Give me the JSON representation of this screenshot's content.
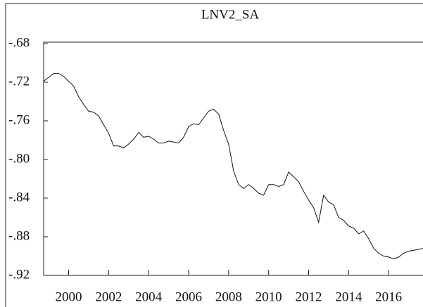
{
  "chart_data": {
    "type": "line",
    "title": "LNV2_SA",
    "x": [
      1998.75,
      1999,
      1999.25,
      1999.5,
      1999.75,
      2000,
      2000.25,
      2000.5,
      2000.75,
      2001,
      2001.25,
      2001.5,
      2001.75,
      2002,
      2002.25,
      2002.5,
      2002.75,
      2003,
      2003.25,
      2003.5,
      2003.75,
      2004,
      2004.25,
      2004.5,
      2004.75,
      2005,
      2005.25,
      2005.5,
      2005.75,
      2006,
      2006.25,
      2006.5,
      2006.75,
      2007,
      2007.25,
      2007.5,
      2007.75,
      2008,
      2008.25,
      2008.5,
      2008.75,
      2009,
      2009.25,
      2009.5,
      2009.75,
      2010,
      2010.25,
      2010.5,
      2010.75,
      2011,
      2011.25,
      2011.5,
      2011.75,
      2012,
      2012.25,
      2012.5,
      2012.75,
      2013,
      2013.25,
      2013.5,
      2013.75,
      2014,
      2014.25,
      2014.5,
      2014.75,
      2015,
      2015.25,
      2015.5,
      2015.75,
      2016,
      2016.25,
      2016.5,
      2016.75,
      2017,
      2017.25,
      2017.5,
      2017.75
    ],
    "series": [
      {
        "name": "LNV2_SA",
        "color": "#111111",
        "values": [
          -0.719,
          -0.715,
          -0.711,
          -0.711,
          -0.714,
          -0.719,
          -0.724,
          -0.735,
          -0.743,
          -0.75,
          -0.751,
          -0.755,
          -0.764,
          -0.773,
          -0.786,
          -0.786,
          -0.788,
          -0.784,
          -0.779,
          -0.772,
          -0.777,
          -0.776,
          -0.779,
          -0.783,
          -0.783,
          -0.781,
          -0.782,
          -0.783,
          -0.777,
          -0.766,
          -0.763,
          -0.764,
          -0.757,
          -0.75,
          -0.748,
          -0.753,
          -0.77,
          -0.784,
          -0.812,
          -0.826,
          -0.83,
          -0.826,
          -0.83,
          -0.835,
          -0.837,
          -0.826,
          -0.826,
          -0.828,
          -0.826,
          -0.813,
          -0.818,
          -0.823,
          -0.833,
          -0.842,
          -0.85,
          -0.865,
          -0.837,
          -0.844,
          -0.847,
          -0.86,
          -0.863,
          -0.869,
          -0.871,
          -0.877,
          -0.874,
          -0.882,
          -0.892,
          -0.897,
          -0.9,
          -0.901,
          -0.903,
          -0.901,
          -0.897,
          -0.895,
          -0.894,
          -0.893,
          -0.892
        ]
      }
    ],
    "xlim": [
      1998.75,
      2018.0
    ],
    "xticks": [
      2000,
      2002,
      2004,
      2006,
      2008,
      2010,
      2012,
      2014,
      2016
    ],
    "ylim": [
      -0.92,
      -0.68
    ],
    "yticks": [
      {
        "value": -0.92,
        "label": "-.92"
      },
      {
        "value": -0.88,
        "label": "-.88"
      },
      {
        "value": -0.84,
        "label": "-.84"
      },
      {
        "value": -0.8,
        "label": "-.80"
      },
      {
        "value": -0.76,
        "label": "-.76"
      },
      {
        "value": -0.72,
        "label": "-.72"
      },
      {
        "value": -0.68,
        "label": "-.68"
      }
    ]
  }
}
